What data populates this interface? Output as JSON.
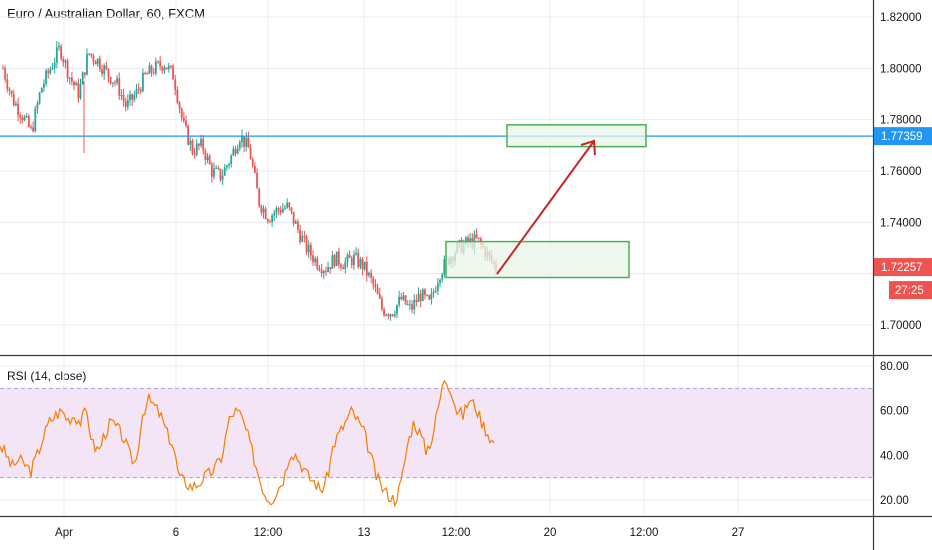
{
  "title": "Euro / Australian Dollar, 60, FXCM",
  "rsi_title": "RSI (14, close)",
  "colors": {
    "up": "#26a69a",
    "down": "#ef5350",
    "hline": "#2196f3",
    "zone_border": "#4caf50",
    "zone_fill": "#e8f5e9",
    "arrow": "#c62828",
    "rsi_line": "#f57c00",
    "rsi_band": "#f3e5f5",
    "rsi_level": "#b39ddb"
  },
  "chart_data": [
    {
      "type": "candlestick",
      "symbol": "Euro / Australian Dollar, 60, FXCM",
      "ylim": [
        1.69,
        1.825
      ],
      "y_ticks": [
        "1.82000",
        "1.80000",
        "1.78000",
        "1.76000",
        "1.74000",
        "1.70000"
      ],
      "x_ticks": [
        "Apr",
        "6",
        "12:00",
        "13",
        "12:00",
        "20",
        "12:00",
        "27"
      ],
      "close_path": [
        1.8,
        1.788,
        1.782,
        1.775,
        1.792,
        1.8,
        1.808,
        1.797,
        1.79,
        1.806,
        1.803,
        1.798,
        1.794,
        1.785,
        1.79,
        1.797,
        1.8,
        1.802,
        1.797,
        1.778,
        1.768,
        1.77,
        1.76,
        1.758,
        1.765,
        1.774,
        1.768,
        1.748,
        1.742,
        1.745,
        1.746,
        1.738,
        1.73,
        1.725,
        1.722,
        1.726,
        1.724,
        1.726,
        1.723,
        1.716,
        1.706,
        1.705,
        1.71,
        1.706,
        1.712,
        1.708,
        1.72,
        1.726,
        1.73,
        1.732,
        1.733,
        1.728,
        1.722
      ],
      "price_labels": [
        {
          "value": "1.77359",
          "price": 1.77359,
          "color": "#2196f3"
        },
        {
          "value": "1.72257",
          "price": 1.72257,
          "color": "#ef5350"
        }
      ],
      "countdown": "27:25",
      "horizontal_line": 1.77359,
      "zones": [
        {
          "date_start_idx": 49,
          "date_end_idx": 68,
          "price_top": 1.7325,
          "price_bottom": 1.7185
        },
        {
          "date_start_idx": 55,
          "date_end_idx": 70,
          "price_top": 1.778,
          "price_bottom": 1.7695
        }
      ],
      "arrow": {
        "from_price": 1.7185,
        "to_price": 1.769
      }
    },
    {
      "type": "line",
      "name": "RSI (14, close)",
      "ylim": [
        15,
        82
      ],
      "y_ticks": [
        "80.00",
        "60.00",
        "40.00",
        "20.00"
      ],
      "levels": [
        70,
        30
      ],
      "values": [
        45,
        40,
        35,
        38,
        36,
        33,
        40,
        48,
        55,
        58,
        60,
        56,
        58,
        55,
        60,
        45,
        42,
        50,
        55,
        52,
        48,
        40,
        36,
        58,
        65,
        62,
        58,
        50,
        45,
        30,
        28,
        26,
        27,
        30,
        32,
        35,
        40,
        55,
        60,
        58,
        50,
        40,
        30,
        22,
        20,
        25,
        30,
        42,
        40,
        35,
        30,
        28,
        24,
        30,
        45,
        50,
        55,
        60,
        55,
        50,
        40,
        30,
        25,
        22,
        20,
        28,
        45,
        55,
        50,
        42,
        48,
        62,
        75,
        70,
        60,
        58,
        65,
        62,
        55,
        50,
        45
      ]
    }
  ]
}
